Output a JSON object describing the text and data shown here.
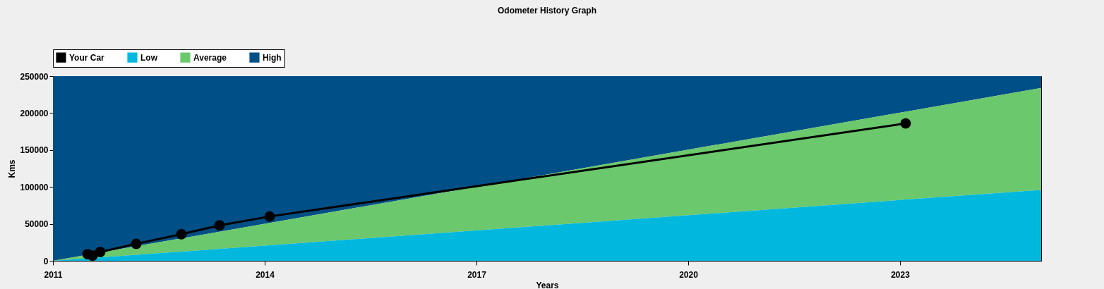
{
  "chart_data": {
    "type": "line",
    "title": "Odometer History Graph",
    "xlabel": "Years",
    "ylabel": "Kms",
    "xlim": [
      2011,
      2025
    ],
    "xticks": [
      2011,
      2014,
      2017,
      2020,
      2023
    ],
    "ylim": [
      0,
      250000
    ],
    "yticks": [
      0,
      50000,
      100000,
      150000,
      200000,
      250000
    ],
    "grid": false,
    "legend": "top left",
    "stacked": true,
    "series": [
      {
        "name": "Your Car",
        "color": "#000000",
        "marker": "circle",
        "x": [
          2011.49,
          2011.56,
          2011.67,
          2012.18,
          2012.82,
          2013.36,
          2014.07,
          2023.08
        ],
        "values": [
          9000,
          7000,
          12000,
          23000,
          36000,
          48000,
          60000,
          186000
        ]
      },
      {
        "name": "Low",
        "type": "area",
        "color": "#00b8de",
        "x": [
          2011,
          2025
        ],
        "values": [
          0,
          96000
        ]
      },
      {
        "name": "Average",
        "type": "area",
        "color": "#6cc86c",
        "x": [
          2011,
          2025
        ],
        "values": [
          0,
          138000
        ]
      },
      {
        "name": "High",
        "type": "area",
        "color": "#004f86",
        "x": [
          2011,
          2025
        ],
        "values": [
          250000,
          16000
        ]
      }
    ]
  }
}
